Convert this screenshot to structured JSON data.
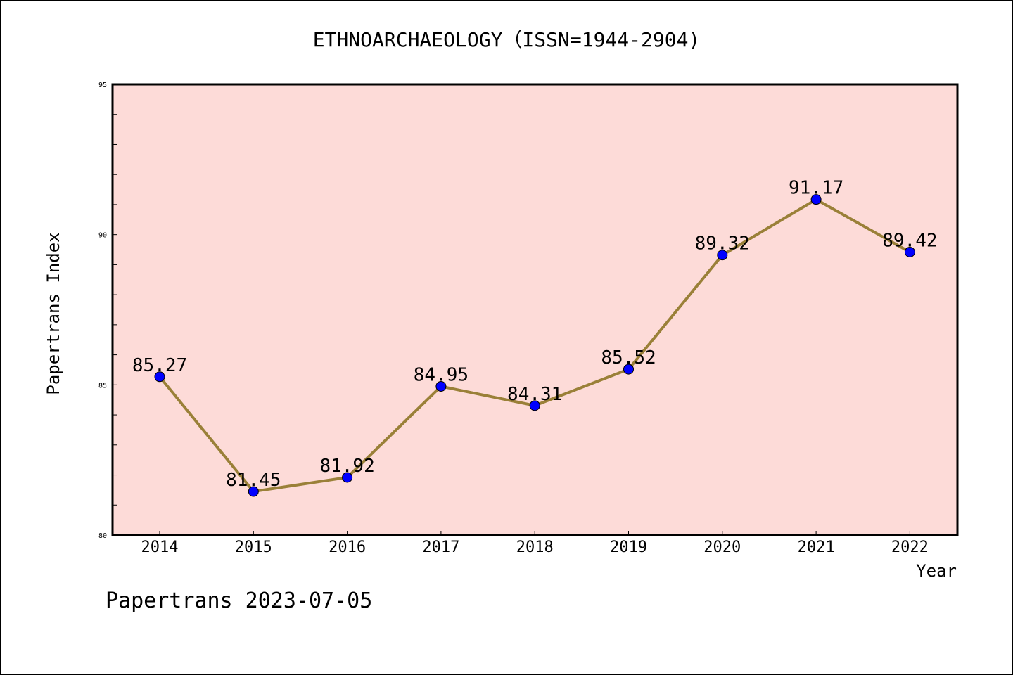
{
  "chart_data": {
    "type": "line",
    "title": "ETHNOARCHAEOLOGY（ISSN=1944-2904)",
    "xlabel": "Year",
    "ylabel": "Papertrans Index",
    "x": [
      "2014",
      "2015",
      "2016",
      "2017",
      "2018",
      "2019",
      "2020",
      "2021",
      "2022"
    ],
    "series": [
      {
        "values": [
          85.27,
          81.45,
          81.92,
          84.95,
          84.31,
          85.52,
          89.32,
          91.17,
          89.42
        ],
        "labels": [
          "85.27",
          "81.45",
          "81.92",
          "84.95",
          "84.31",
          "85.52",
          "89.32",
          "91.17",
          "89.42"
        ]
      }
    ],
    "ylim": [
      80,
      95
    ],
    "yticks": [
      "80",
      "85",
      "90",
      "95"
    ],
    "grid": false,
    "legend": "none",
    "footer": "Papertrans 2023-07-05",
    "colors": {
      "plot_background": "#fddbd8",
      "line": "#9a8038",
      "marker": "#0000ff"
    }
  }
}
